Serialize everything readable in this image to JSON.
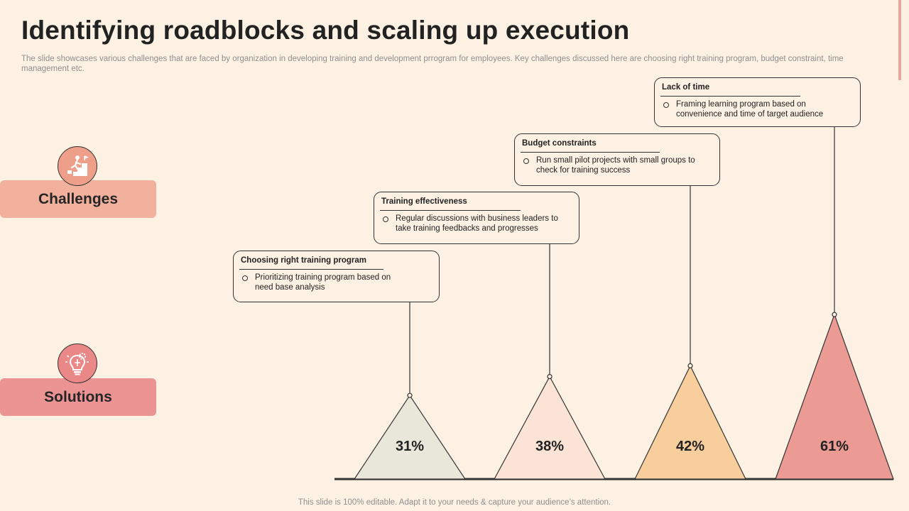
{
  "title": "Identifying roadblocks and scaling up execution",
  "subtitle": "The slide showcases various challenges that are faced by organization in developing training and development prrogram for employees. Key challenges discussed here are choosing right training program, budget constraint, time management etc.",
  "side_labels": {
    "challenges": "Challenges",
    "solutions": "Solutions"
  },
  "icons": {
    "challenges": "person-climbing-stairs-icon",
    "solutions": "lightbulb-gear-icon"
  },
  "colors": {
    "background": "#fcf1e3",
    "challenges": "#f2b19d",
    "solutions": "#ec9494",
    "triangle_1": "#e9e6da",
    "triangle_2": "#fbe4d6",
    "triangle_3": "#f8cf9c",
    "triangle_4": "#eb9b93"
  },
  "callouts": [
    {
      "heading": "Choosing right training program",
      "text": "Prioritizing training program based on need base analysis"
    },
    {
      "heading": "Training effectiveness",
      "text": "Regular discussions with business leaders to take training feedbacks and progresses"
    },
    {
      "heading": "Budget constraints",
      "text": "Run small pilot projects with small groups to check for training success"
    },
    {
      "heading": "Lack of time",
      "text": "Framing learning program based on convenience and time of target audience"
    }
  ],
  "chart_data": {
    "type": "bar",
    "categories": [
      "Choosing right training program",
      "Training effectiveness",
      "Budget constraints",
      "Lack of time"
    ],
    "values": [
      31,
      38,
      42,
      61
    ],
    "labels": [
      "31%",
      "38%",
      "42%",
      "61%"
    ]
  },
  "footer": "This slide is 100% editable. Adapt it to your needs & capture your audience’s attention."
}
